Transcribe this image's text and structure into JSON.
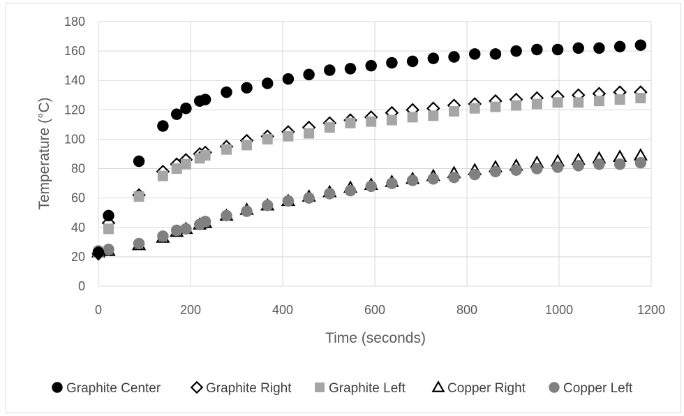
{
  "chart_data": {
    "type": "scatter",
    "title": "",
    "xlabel": "Time (seconds)",
    "ylabel": "Temperature (°C)",
    "xlim": [
      0,
      1200
    ],
    "ylim": [
      0,
      180
    ],
    "x_ticks": [
      0,
      200,
      400,
      600,
      800,
      1000,
      1200
    ],
    "y_ticks": [
      0,
      20,
      40,
      60,
      80,
      100,
      120,
      140,
      160,
      180
    ],
    "grid": "vertical and horizontal major gridlines",
    "legend_position": "bottom",
    "series": [
      {
        "name": "Graphite Center",
        "marker": "circle",
        "color": "#000000",
        "x": [
          0,
          22,
          88,
          140,
          170,
          190,
          220,
          232,
          278,
          322,
          367,
          412,
          457,
          502,
          547,
          592,
          637,
          682,
          727,
          772,
          817,
          862,
          907,
          952,
          997,
          1042,
          1087,
          1132,
          1177
        ],
        "y": [
          23,
          48,
          85,
          109,
          117,
          121,
          126,
          127,
          132,
          135,
          138,
          141,
          144,
          147,
          148,
          150,
          152,
          153,
          155,
          156,
          158,
          158,
          160,
          161,
          161,
          162,
          162,
          163,
          164
        ]
      },
      {
        "name": "Graphite Right",
        "marker": "diamond",
        "color": "#000000",
        "x": [
          0,
          22,
          88,
          140,
          170,
          190,
          220,
          232,
          278,
          322,
          367,
          412,
          457,
          502,
          547,
          592,
          637,
          682,
          727,
          772,
          817,
          862,
          907,
          952,
          997,
          1042,
          1087,
          1132,
          1177
        ],
        "y": [
          22,
          43,
          62,
          78,
          83,
          86,
          90,
          91,
          95,
          99,
          102,
          105,
          108,
          111,
          113,
          115,
          118,
          120,
          121,
          123,
          124,
          126,
          127,
          128,
          129,
          130,
          131,
          132,
          132
        ]
      },
      {
        "name": "Graphite Left",
        "marker": "square",
        "color": "#a6a6a6",
        "x": [
          0,
          22,
          88,
          140,
          170,
          190,
          220,
          232,
          278,
          322,
          367,
          412,
          457,
          502,
          547,
          592,
          637,
          682,
          727,
          772,
          817,
          862,
          907,
          952,
          997,
          1042,
          1087,
          1132,
          1177
        ],
        "y": [
          23,
          39,
          61,
          75,
          80,
          83,
          87,
          89,
          93,
          96,
          100,
          102,
          104,
          108,
          111,
          112,
          113,
          115,
          116,
          119,
          121,
          122,
          123,
          124,
          125,
          125,
          126,
          127,
          128
        ]
      },
      {
        "name": "Copper Right",
        "marker": "triangle",
        "color": "#000000",
        "x": [
          0,
          22,
          88,
          140,
          170,
          190,
          220,
          232,
          278,
          322,
          367,
          412,
          457,
          502,
          547,
          592,
          637,
          682,
          727,
          772,
          817,
          862,
          907,
          952,
          997,
          1042,
          1087,
          1132,
          1177
        ],
        "y": [
          23,
          24,
          28,
          33,
          37,
          39,
          42,
          43,
          48,
          52,
          55,
          58,
          61,
          64,
          67,
          69,
          71,
          73,
          75,
          77,
          79,
          81,
          82,
          84,
          85,
          86,
          87,
          88,
          89
        ]
      },
      {
        "name": "Copper Left",
        "marker": "circle",
        "color": "#808080",
        "x": [
          0,
          22,
          88,
          140,
          170,
          190,
          220,
          232,
          278,
          322,
          367,
          412,
          457,
          502,
          547,
          592,
          637,
          682,
          727,
          772,
          817,
          862,
          907,
          952,
          997,
          1042,
          1087,
          1132,
          1177
        ],
        "y": [
          24,
          25,
          29,
          34,
          38,
          39,
          42,
          44,
          48,
          51,
          55,
          58,
          60,
          63,
          65,
          68,
          70,
          72,
          73,
          74,
          76,
          78,
          79,
          80,
          81,
          82,
          83,
          83,
          84
        ]
      }
    ]
  }
}
